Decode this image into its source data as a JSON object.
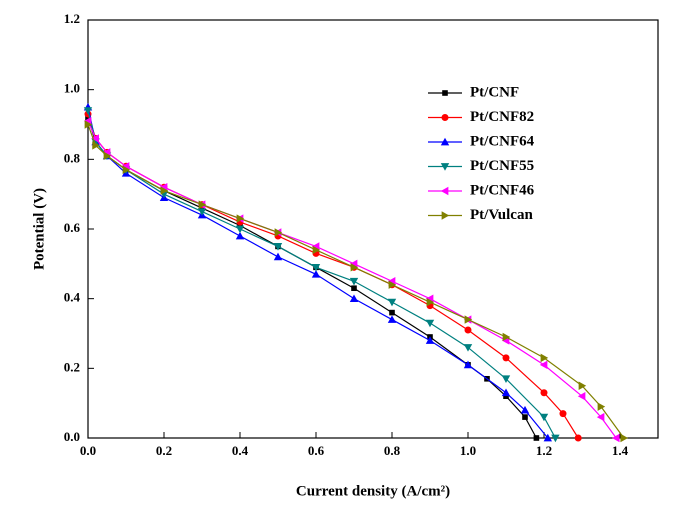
{
  "chart_data": {
    "type": "line",
    "xlabel": "Current density (A/cm²)",
    "ylabel": "Potential (V)",
    "xlim": [
      0,
      1.5
    ],
    "ylim": [
      0,
      1.2
    ],
    "xticks": [
      {
        "value": 0,
        "label": "0.0"
      },
      0.2,
      0.4,
      0.6,
      0.8,
      {
        "value": 1,
        "label": "1.0"
      },
      1.2,
      1.4
    ],
    "yticks": [
      {
        "value": 0,
        "label": "0.0"
      },
      0.2,
      0.4,
      0.6,
      0.8,
      {
        "value": 1,
        "label": "1.0"
      },
      1.2
    ],
    "legend": "upper right",
    "series": [
      {
        "name": "Pt/CNF",
        "color": "#000000",
        "marker": "square",
        "x": [
          0,
          0.02,
          0.05,
          0.1,
          0.2,
          0.3,
          0.4,
          0.5,
          0.6,
          0.7,
          0.8,
          0.9,
          1.0,
          1.05,
          1.1,
          1.15,
          1.18
        ],
        "values": [
          0.92,
          0.85,
          0.81,
          0.77,
          0.71,
          0.66,
          0.61,
          0.55,
          0.49,
          0.43,
          0.36,
          0.29,
          0.21,
          0.17,
          0.12,
          0.06,
          0
        ]
      },
      {
        "name": "Pt/CNF82",
        "color": "#ff0000",
        "marker": "circle",
        "x": [
          0,
          0.02,
          0.05,
          0.1,
          0.2,
          0.3,
          0.4,
          0.5,
          0.6,
          0.7,
          0.8,
          0.9,
          1.0,
          1.1,
          1.2,
          1.25,
          1.29
        ],
        "values": [
          0.93,
          0.86,
          0.82,
          0.78,
          0.72,
          0.67,
          0.62,
          0.58,
          0.53,
          0.49,
          0.44,
          0.38,
          0.31,
          0.23,
          0.13,
          0.07,
          0
        ]
      },
      {
        "name": "Pt/CNF64",
        "color": "#0000ff",
        "marker": "triangle-up",
        "x": [
          0,
          0.02,
          0.05,
          0.1,
          0.2,
          0.3,
          0.4,
          0.5,
          0.6,
          0.7,
          0.8,
          0.9,
          1.0,
          1.1,
          1.15,
          1.21
        ],
        "values": [
          0.95,
          0.85,
          0.81,
          0.76,
          0.69,
          0.64,
          0.58,
          0.52,
          0.47,
          0.4,
          0.34,
          0.28,
          0.21,
          0.13,
          0.08,
          0
        ]
      },
      {
        "name": "Pt/CNF55",
        "color": "#008080",
        "marker": "triangle-down",
        "x": [
          0,
          0.02,
          0.05,
          0.1,
          0.2,
          0.3,
          0.4,
          0.5,
          0.6,
          0.7,
          0.8,
          0.9,
          1.0,
          1.1,
          1.2,
          1.23
        ],
        "values": [
          0.94,
          0.85,
          0.81,
          0.77,
          0.7,
          0.65,
          0.6,
          0.55,
          0.49,
          0.45,
          0.39,
          0.33,
          0.26,
          0.17,
          0.06,
          0
        ]
      },
      {
        "name": "Pt/CNF46",
        "color": "#ff00ff",
        "marker": "triangle-left",
        "x": [
          0,
          0.02,
          0.05,
          0.1,
          0.2,
          0.3,
          0.4,
          0.5,
          0.6,
          0.7,
          0.8,
          0.9,
          1.0,
          1.1,
          1.2,
          1.3,
          1.35,
          1.39
        ],
        "values": [
          0.91,
          0.86,
          0.82,
          0.78,
          0.72,
          0.67,
          0.63,
          0.59,
          0.55,
          0.5,
          0.45,
          0.4,
          0.34,
          0.28,
          0.21,
          0.12,
          0.06,
          0
        ]
      },
      {
        "name": "Pt/Vulcan",
        "color": "#808000",
        "marker": "triangle-right",
        "x": [
          0,
          0.02,
          0.05,
          0.1,
          0.2,
          0.3,
          0.4,
          0.5,
          0.6,
          0.7,
          0.8,
          0.9,
          1.0,
          1.1,
          1.2,
          1.3,
          1.35,
          1.41
        ],
        "values": [
          0.9,
          0.84,
          0.81,
          0.77,
          0.71,
          0.67,
          0.63,
          0.59,
          0.54,
          0.49,
          0.44,
          0.39,
          0.34,
          0.29,
          0.23,
          0.15,
          0.09,
          0
        ]
      }
    ]
  }
}
